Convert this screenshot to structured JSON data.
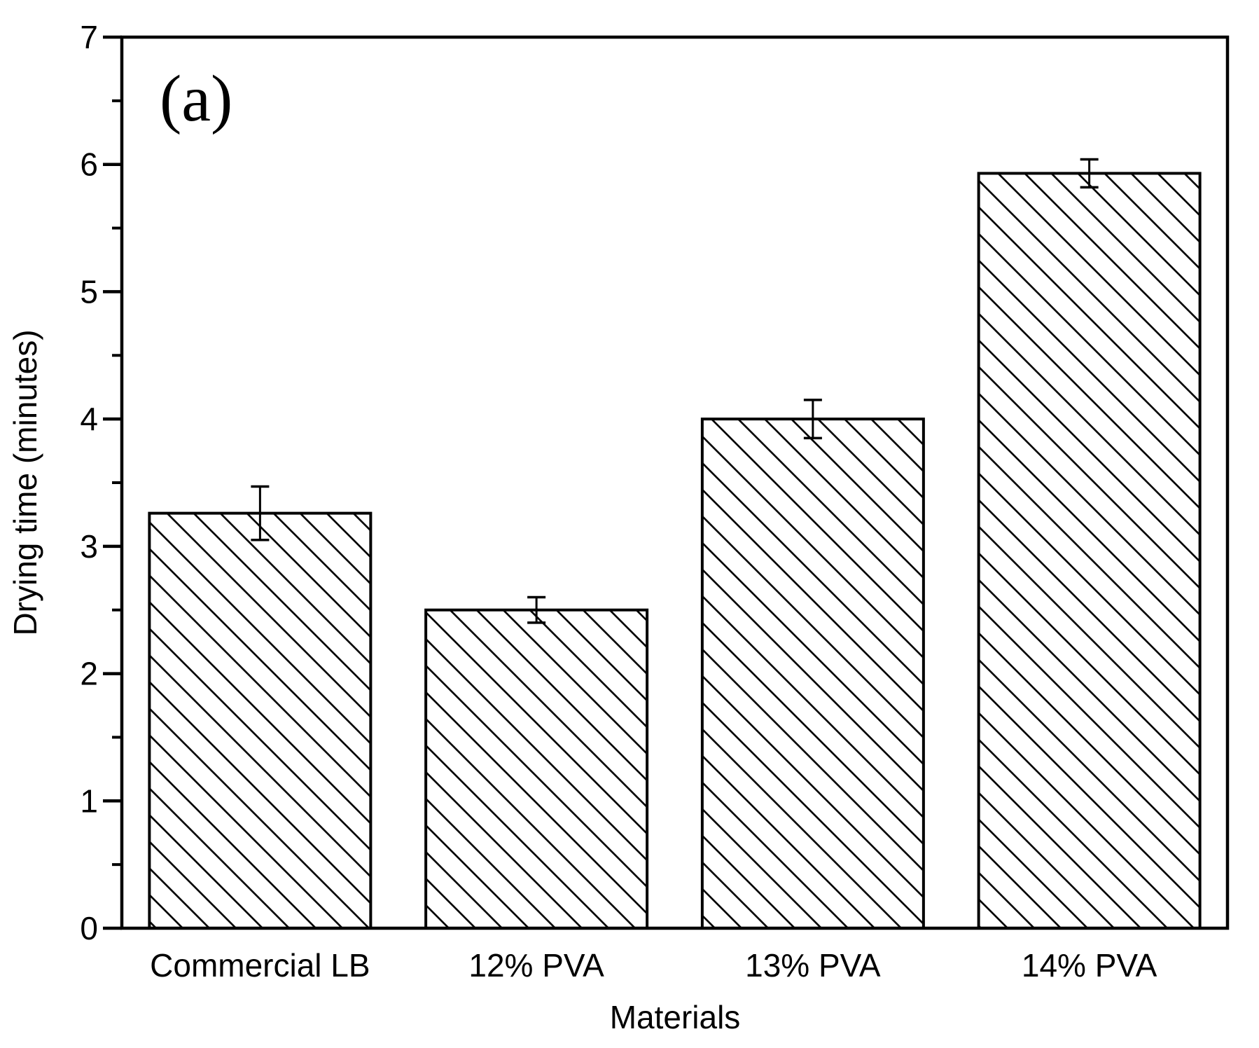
{
  "figure_label": "(a)",
  "colors": {
    "foreground": "#000000",
    "background": "#ffffff"
  },
  "chart_data": {
    "type": "bar",
    "title": "",
    "xlabel": "Materials",
    "ylabel": "Drying time (minutes)",
    "categories": [
      "Commercial LB",
      "12% PVA",
      "13% PVA",
      "14% PVA"
    ],
    "values": [
      3.26,
      2.5,
      4.0,
      5.93
    ],
    "errors": [
      0.21,
      0.1,
      0.15,
      0.11
    ],
    "ylim": [
      0,
      7
    ],
    "yticks": [
      0,
      1,
      2,
      3,
      4,
      5,
      6,
      7
    ],
    "minor_tick_step": 0.5,
    "grid": false,
    "legend": "none",
    "bar_style": "white fill with black diagonal hatch (top-left to bottom-right), black outline",
    "error_bar_style": "black vertical line with flat caps"
  }
}
